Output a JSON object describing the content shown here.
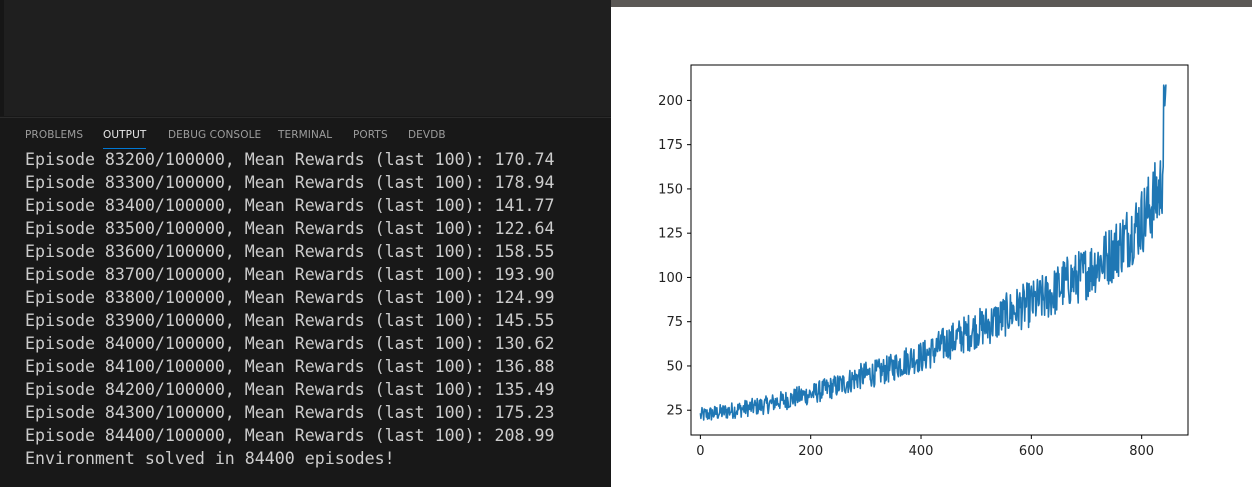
{
  "panel": {
    "tabs": [
      {
        "label": "PROBLEMS"
      },
      {
        "label": "OUTPUT"
      },
      {
        "label": "DEBUG CONSOLE"
      },
      {
        "label": "TERMINAL"
      },
      {
        "label": "PORTS"
      },
      {
        "label": "DEVDB"
      }
    ],
    "active_tab": "OUTPUT",
    "output_lines": [
      "Episode 83200/100000, Mean Rewards (last 100): 170.74",
      "Episode 83300/100000, Mean Rewards (last 100): 178.94",
      "Episode 83400/100000, Mean Rewards (last 100): 141.77",
      "Episode 83500/100000, Mean Rewards (last 100): 122.64",
      "Episode 83600/100000, Mean Rewards (last 100): 158.55",
      "Episode 83700/100000, Mean Rewards (last 100): 193.90",
      "Episode 83800/100000, Mean Rewards (last 100): 124.99",
      "Episode 83900/100000, Mean Rewards (last 100): 145.55",
      "Episode 84000/100000, Mean Rewards (last 100): 130.62",
      "Episode 84100/100000, Mean Rewards (last 100): 136.88",
      "Episode 84200/100000, Mean Rewards (last 100): 135.49",
      "Episode 84300/100000, Mean Rewards (last 100): 175.23",
      "Episode 84400/100000, Mean Rewards (last 100): 208.99",
      "Environment solved in 84400 episodes!"
    ]
  },
  "chart_data": {
    "type": "line",
    "title": "",
    "xlabel": "",
    "ylabel": "",
    "xlim": [
      -17,
      884
    ],
    "ylim": [
      11,
      220
    ],
    "xticks": [
      0,
      200,
      400,
      600,
      800
    ],
    "yticks": [
      25,
      50,
      75,
      100,
      125,
      150,
      175,
      200
    ],
    "xtick_labels": [
      "0",
      "200",
      "400",
      "600",
      "800"
    ],
    "ytick_labels": [
      "25",
      "50",
      "75",
      "100",
      "125",
      "150",
      "175",
      "200"
    ],
    "grid": false,
    "color": "#1f77b4",
    "series": [
      {
        "x": [
          0,
          20,
          40,
          60,
          80,
          100,
          120,
          140,
          160,
          180,
          200,
          220,
          240,
          260,
          280,
          300,
          320,
          340,
          360,
          380,
          400,
          420,
          440,
          460,
          480,
          500,
          520,
          540,
          560,
          580,
          600,
          620,
          640,
          660,
          680,
          700,
          720,
          740,
          760,
          780,
          800,
          820,
          834,
          838,
          840,
          844
        ],
        "y": [
          22,
          23,
          24,
          25,
          26,
          27,
          28,
          30,
          31,
          33,
          34,
          36,
          38,
          40,
          43,
          45,
          46,
          48,
          51,
          54,
          55,
          58,
          62,
          65,
          68,
          71,
          73,
          76,
          80,
          83,
          85,
          88,
          91,
          97,
          99,
          103,
          108,
          112,
          118,
          125,
          132,
          142,
          150,
          160,
          185,
          209
        ]
      }
    ]
  }
}
